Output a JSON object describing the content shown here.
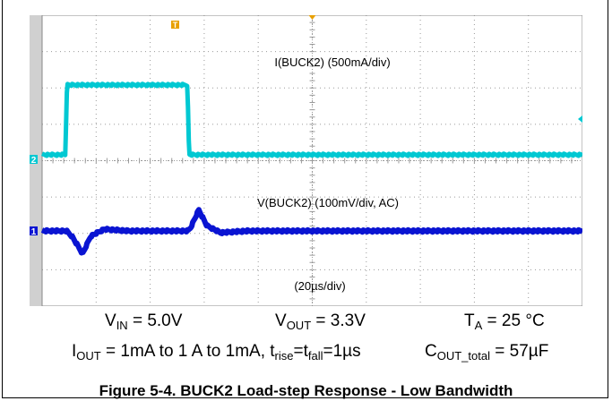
{
  "chart_data": {
    "type": "line",
    "title": "",
    "x_label": "(20µs/div)",
    "x_unit_per_div": "20µs",
    "divisions": {
      "x": 10,
      "y": 8
    },
    "grid": true,
    "series": [
      {
        "name": "I(BUCK2) (500mA/div)",
        "channel": "2",
        "color": "#00c8d2",
        "unit": "mA",
        "x": [
          0.0,
          0.43,
          0.46,
          2.69,
          2.72,
          10.0
        ],
        "values": [
          1,
          1,
          1000,
          1000,
          1,
          1
        ]
      },
      {
        "name": "V(BUCK2) (100mV/div, AC)",
        "channel": "1",
        "color": "#0a14d2",
        "unit": "mV",
        "x": [
          0.0,
          0.45,
          0.55,
          0.75,
          0.9,
          1.15,
          1.6,
          2.7,
          2.75,
          2.9,
          3.05,
          3.3,
          3.8,
          10.0
        ],
        "values": [
          0,
          0,
          -15,
          -65,
          -15,
          5,
          0,
          0,
          10,
          60,
          15,
          -5,
          0,
          0
        ]
      }
    ],
    "markers": {
      "trigger": "T",
      "ch1": "1",
      "ch2": "2"
    },
    "colors": {
      "background": "#ffffff",
      "grid": "#9a9a9a",
      "ch_bar": "#d0d0d0",
      "trigger": "#e8a000"
    }
  },
  "conditions": {
    "vin": {
      "sym": "V",
      "sub": "IN",
      "val": " = 5.0V"
    },
    "vout": {
      "sym": "V",
      "sub": "OUT",
      "val": " = 3.3V"
    },
    "ta": {
      "sym": "T",
      "sub": "A",
      "val": " = 25 °C"
    },
    "iout": {
      "sym": "I",
      "sub": "OUT",
      "val": " = 1mA to 1 A to 1mA, t"
    },
    "trise": {
      "sub": "rise",
      "val": "=t"
    },
    "tfall": {
      "sub": "fall",
      "val": "=1µs"
    },
    "cout": {
      "sym": "C",
      "sub": "OUT_total",
      "val": " = 57µF"
    }
  },
  "caption": "Figure 5-4. BUCK2 Load-step Response - Low Bandwidth"
}
